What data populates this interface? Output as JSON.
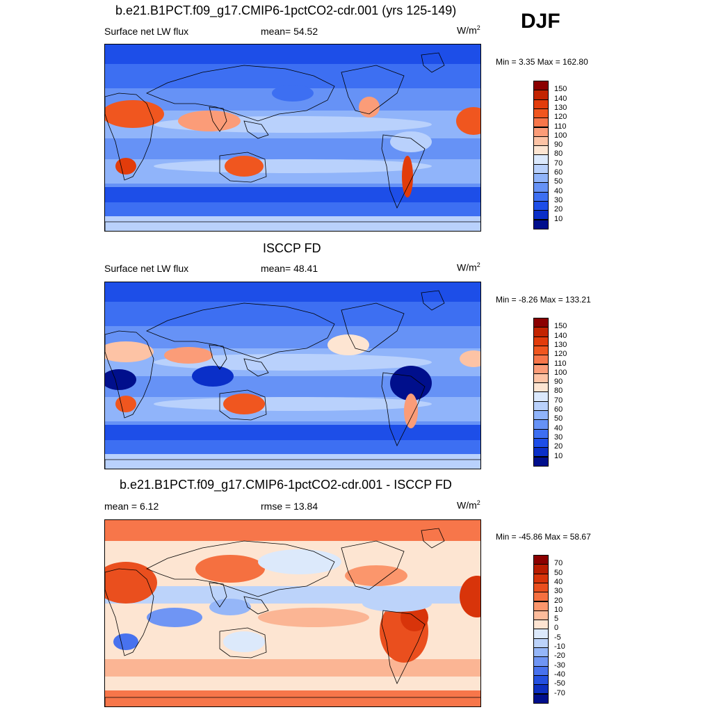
{
  "season": "DJF",
  "panels": [
    {
      "title": "b.e21.B1PCT.f09_g17.CMIP6-1pctCO2-cdr.001 (yrs 125-149)",
      "left_label": "Surface net LW flux",
      "mid_label": "mean=  54.52",
      "units_base": "W/m",
      "units_exp": "2",
      "minmax": "Min =   3.35 Max = 162.80",
      "map_type": "model",
      "colorbar": {
        "labels": [
          "150",
          "140",
          "130",
          "120",
          "110",
          "100",
          "90",
          "80",
          "70",
          "60",
          "50",
          "40",
          "30",
          "20",
          "10"
        ],
        "colors": [
          "#8b0000",
          "#c32400",
          "#e23c0b",
          "#f0561f",
          "#f7764a",
          "#fb9c78",
          "#fdc3a5",
          "#fde5d2",
          "#dbe9fd",
          "#b9d1fc",
          "#90b4fa",
          "#6692f6",
          "#3d6ff2",
          "#1d4ee8",
          "#0a2fc8",
          "#000f8c"
        ]
      },
      "chart_data": {
        "type": "heatmap",
        "title": "b.e21.B1PCT.f09_g17.CMIP6-1pctCO2-cdr.001 (yrs 125-149)",
        "variable": "Surface net LW flux",
        "mean": 54.52,
        "min": 3.35,
        "max": 162.8,
        "units": "W/m2",
        "colorbar_levels": [
          10,
          20,
          30,
          40,
          50,
          60,
          70,
          80,
          90,
          100,
          110,
          120,
          130,
          140,
          150
        ]
      }
    },
    {
      "title": "ISCCP FD",
      "left_label": "Surface net LW flux",
      "mid_label": "mean=  48.41",
      "units_base": "W/m",
      "units_exp": "2",
      "minmax": "Min =  -8.26 Max = 133.21",
      "map_type": "obs",
      "colorbar": {
        "labels": [
          "150",
          "140",
          "130",
          "120",
          "110",
          "100",
          "90",
          "80",
          "70",
          "60",
          "50",
          "40",
          "30",
          "20",
          "10"
        ],
        "colors": [
          "#8b0000",
          "#c32400",
          "#e23c0b",
          "#f0561f",
          "#f7764a",
          "#fb9c78",
          "#fdc3a5",
          "#fde5d2",
          "#dbe9fd",
          "#b9d1fc",
          "#90b4fa",
          "#6692f6",
          "#3d6ff2",
          "#1d4ee8",
          "#0a2fc8",
          "#000f8c"
        ]
      },
      "chart_data": {
        "type": "heatmap",
        "title": "ISCCP FD",
        "variable": "Surface net LW flux",
        "mean": 48.41,
        "min": -8.26,
        "max": 133.21,
        "units": "W/m2",
        "colorbar_levels": [
          10,
          20,
          30,
          40,
          50,
          60,
          70,
          80,
          90,
          100,
          110,
          120,
          130,
          140,
          150
        ]
      }
    },
    {
      "title": "b.e21.B1PCT.f09_g17.CMIP6-1pctCO2-cdr.001 - ISCCP FD",
      "left_label": "mean =   6.12",
      "mid_label": "rmse =  13.84",
      "units_base": "W/m",
      "units_exp": "2",
      "minmax": "Min = -45.86 Max =  58.67",
      "map_type": "diff",
      "colorbar": {
        "labels": [
          "70",
          "50",
          "40",
          "30",
          "20",
          "10",
          "5",
          "0",
          "-5",
          "-10",
          "-20",
          "-30",
          "-40",
          "-50",
          "-70"
        ],
        "colors": [
          "#8b0000",
          "#b81c00",
          "#d8340a",
          "#ea4f1e",
          "#f57040",
          "#fb966c",
          "#fdbc9c",
          "#fee4d2",
          "#dce9fb",
          "#bcd3fa",
          "#95b6f8",
          "#6f95f4",
          "#4872ee",
          "#2450e0",
          "#0d2fc0",
          "#000f8c"
        ]
      },
      "chart_data": {
        "type": "heatmap",
        "title": "b.e21.B1PCT.f09_g17.CMIP6-1pctCO2-cdr.001 - ISCCP FD",
        "mean": 6.12,
        "rmse": 13.84,
        "min": -45.86,
        "max": 58.67,
        "units": "W/m2",
        "colorbar_levels": [
          -70,
          -50,
          -40,
          -30,
          -20,
          -10,
          -5,
          0,
          5,
          10,
          20,
          30,
          40,
          50,
          70
        ]
      }
    }
  ]
}
